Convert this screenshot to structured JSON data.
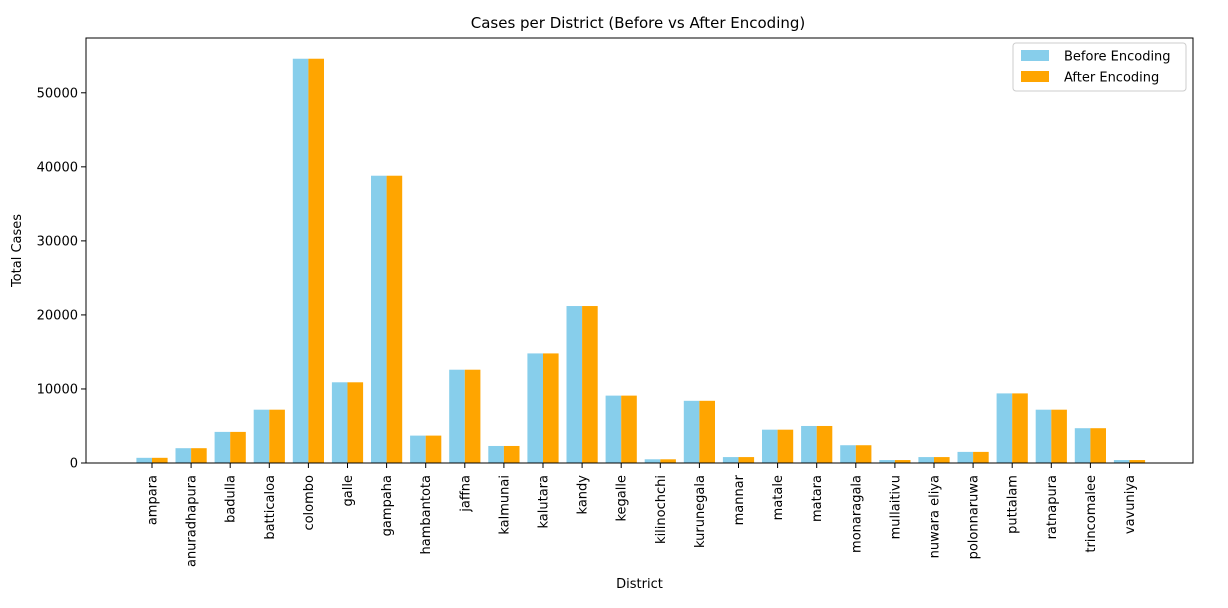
{
  "chart_data": {
    "type": "bar",
    "title": "Cases per District (Before vs After Encoding)",
    "xlabel": "District",
    "ylabel": "Total Cases",
    "ylim": [
      0,
      57400
    ],
    "yticks": [
      0,
      10000,
      20000,
      30000,
      40000,
      50000
    ],
    "legend_position": "top-right",
    "categories": [
      "ampara",
      "anuradhapura",
      "badulla",
      "batticaloa",
      "colombo",
      "galle",
      "gampaha",
      "hambantota",
      "jaffna",
      "kalmunai",
      "kalutara",
      "kandy",
      "kegalle",
      "kilinochchi",
      "kurunegala",
      "mannar",
      "matale",
      "matara",
      "monaragala",
      "mullaitivu",
      "nuwara eliya",
      "polonnaruwa",
      "puttalam",
      "ratnapura",
      "trincomalee",
      "vavuniya"
    ],
    "series": [
      {
        "name": "Before Encoding",
        "color": "#87ceeb",
        "values": [
          700,
          2000,
          4200,
          7200,
          54600,
          10900,
          38800,
          3700,
          12600,
          2300,
          14800,
          21200,
          9100,
          500,
          8400,
          800,
          4500,
          5000,
          2400,
          400,
          800,
          1500,
          9400,
          7200,
          4700,
          400
        ]
      },
      {
        "name": "After Encoding",
        "color": "#ffa500",
        "values": [
          700,
          2000,
          4200,
          7200,
          54600,
          10900,
          38800,
          3700,
          12600,
          2300,
          14800,
          21200,
          9100,
          500,
          8400,
          800,
          4500,
          5000,
          2400,
          400,
          800,
          1500,
          9400,
          7200,
          4700,
          400
        ]
      }
    ]
  }
}
